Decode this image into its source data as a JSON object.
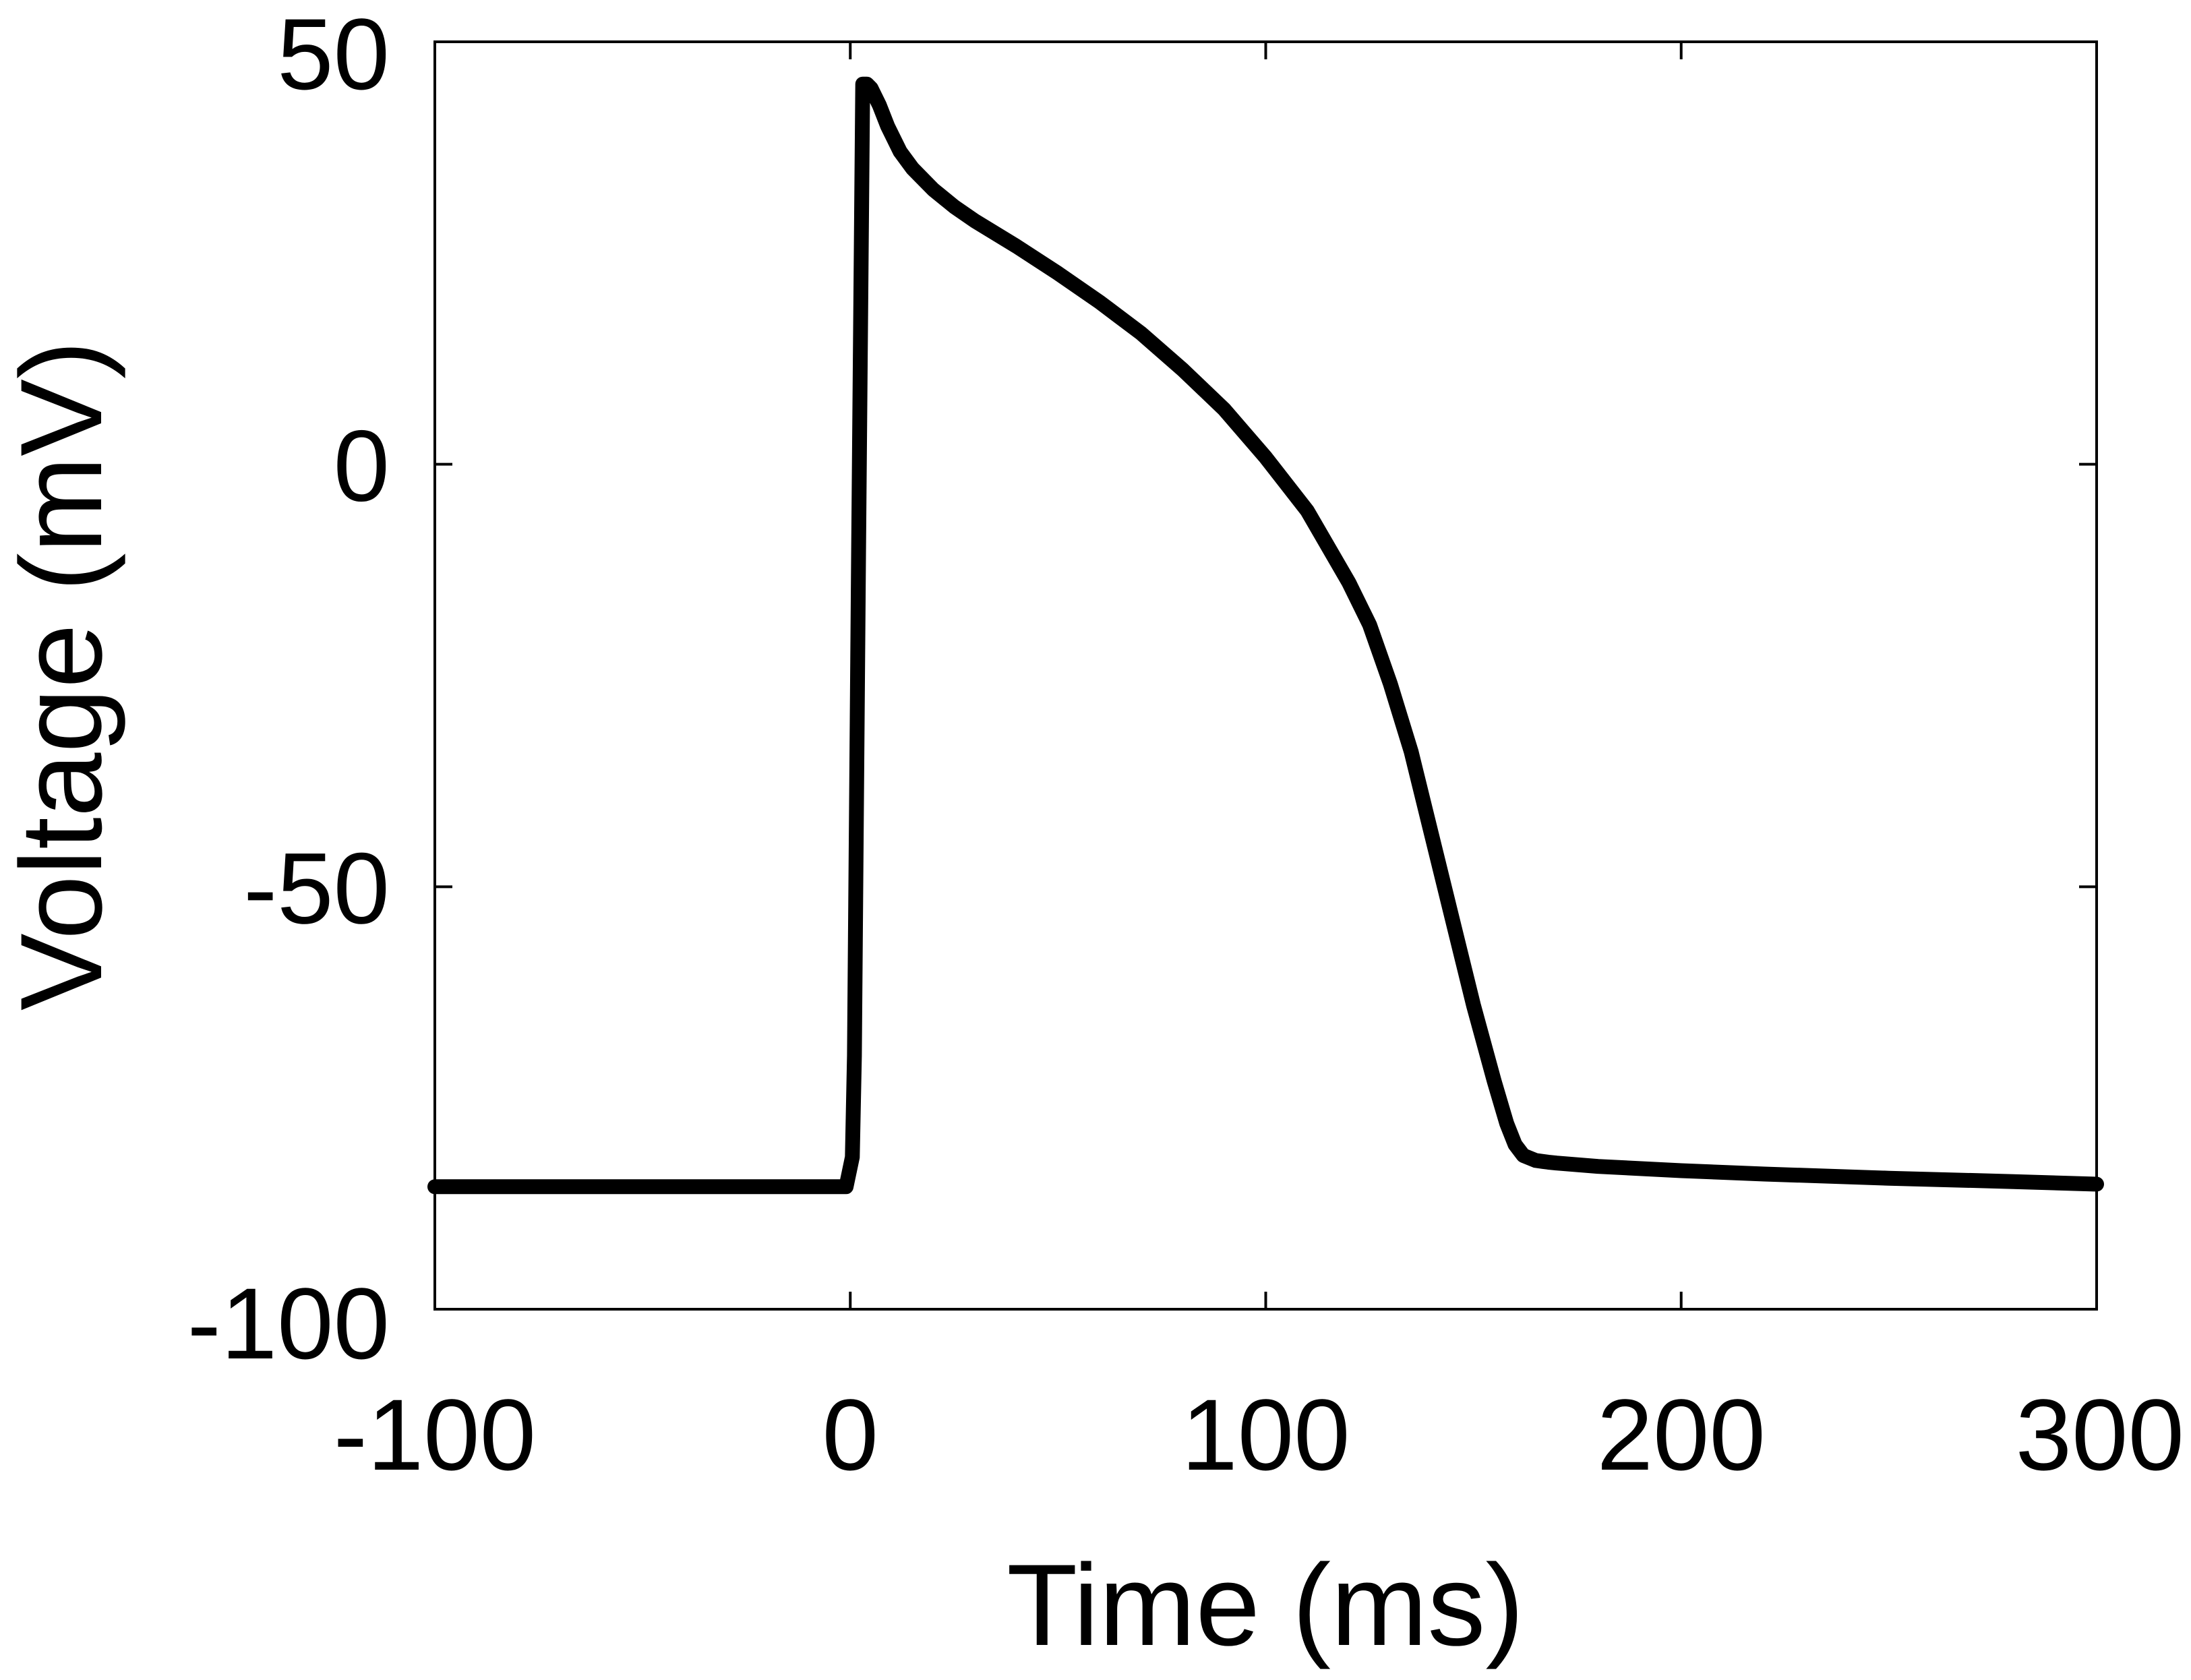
{
  "chart_data": {
    "type": "line",
    "title": "",
    "xlabel": "Time (ms)",
    "ylabel": "Voltage (mV)",
    "xlim": [
      -100,
      300
    ],
    "ylim": [
      -100,
      50
    ],
    "xticks": [
      -100,
      0,
      100,
      200,
      300
    ],
    "yticks": [
      -100,
      -50,
      0,
      50
    ],
    "grid": false,
    "legend": "none",
    "line_color": "#000000",
    "series": [
      {
        "x": [
          -100,
          -1,
          0.5,
          1,
          2,
          3,
          4,
          5,
          7,
          9,
          12,
          15,
          20,
          25,
          30,
          40,
          50,
          60,
          70,
          80,
          90,
          100,
          110,
          120,
          125,
          130,
          135,
          140,
          145,
          150,
          155,
          158,
          160,
          162,
          165,
          168,
          170,
          175,
          180,
          200,
          220,
          250,
          280,
          300
        ],
        "y": [
          -85.5,
          -85.5,
          -82,
          -70,
          -10,
          45,
          45,
          44.5,
          42.5,
          40,
          37,
          35,
          32.5,
          30.5,
          28.8,
          25.8,
          22.6,
          19.2,
          15.5,
          11.2,
          6.5,
          0.8,
          -5.5,
          -14,
          -19,
          -26,
          -34,
          -44,
          -54,
          -64,
          -73,
          -78,
          -80.5,
          -81.8,
          -82.4,
          -82.6,
          -82.7,
          -82.9,
          -83.1,
          -83.6,
          -84,
          -84.5,
          -84.9,
          -85.2
        ]
      }
    ]
  }
}
